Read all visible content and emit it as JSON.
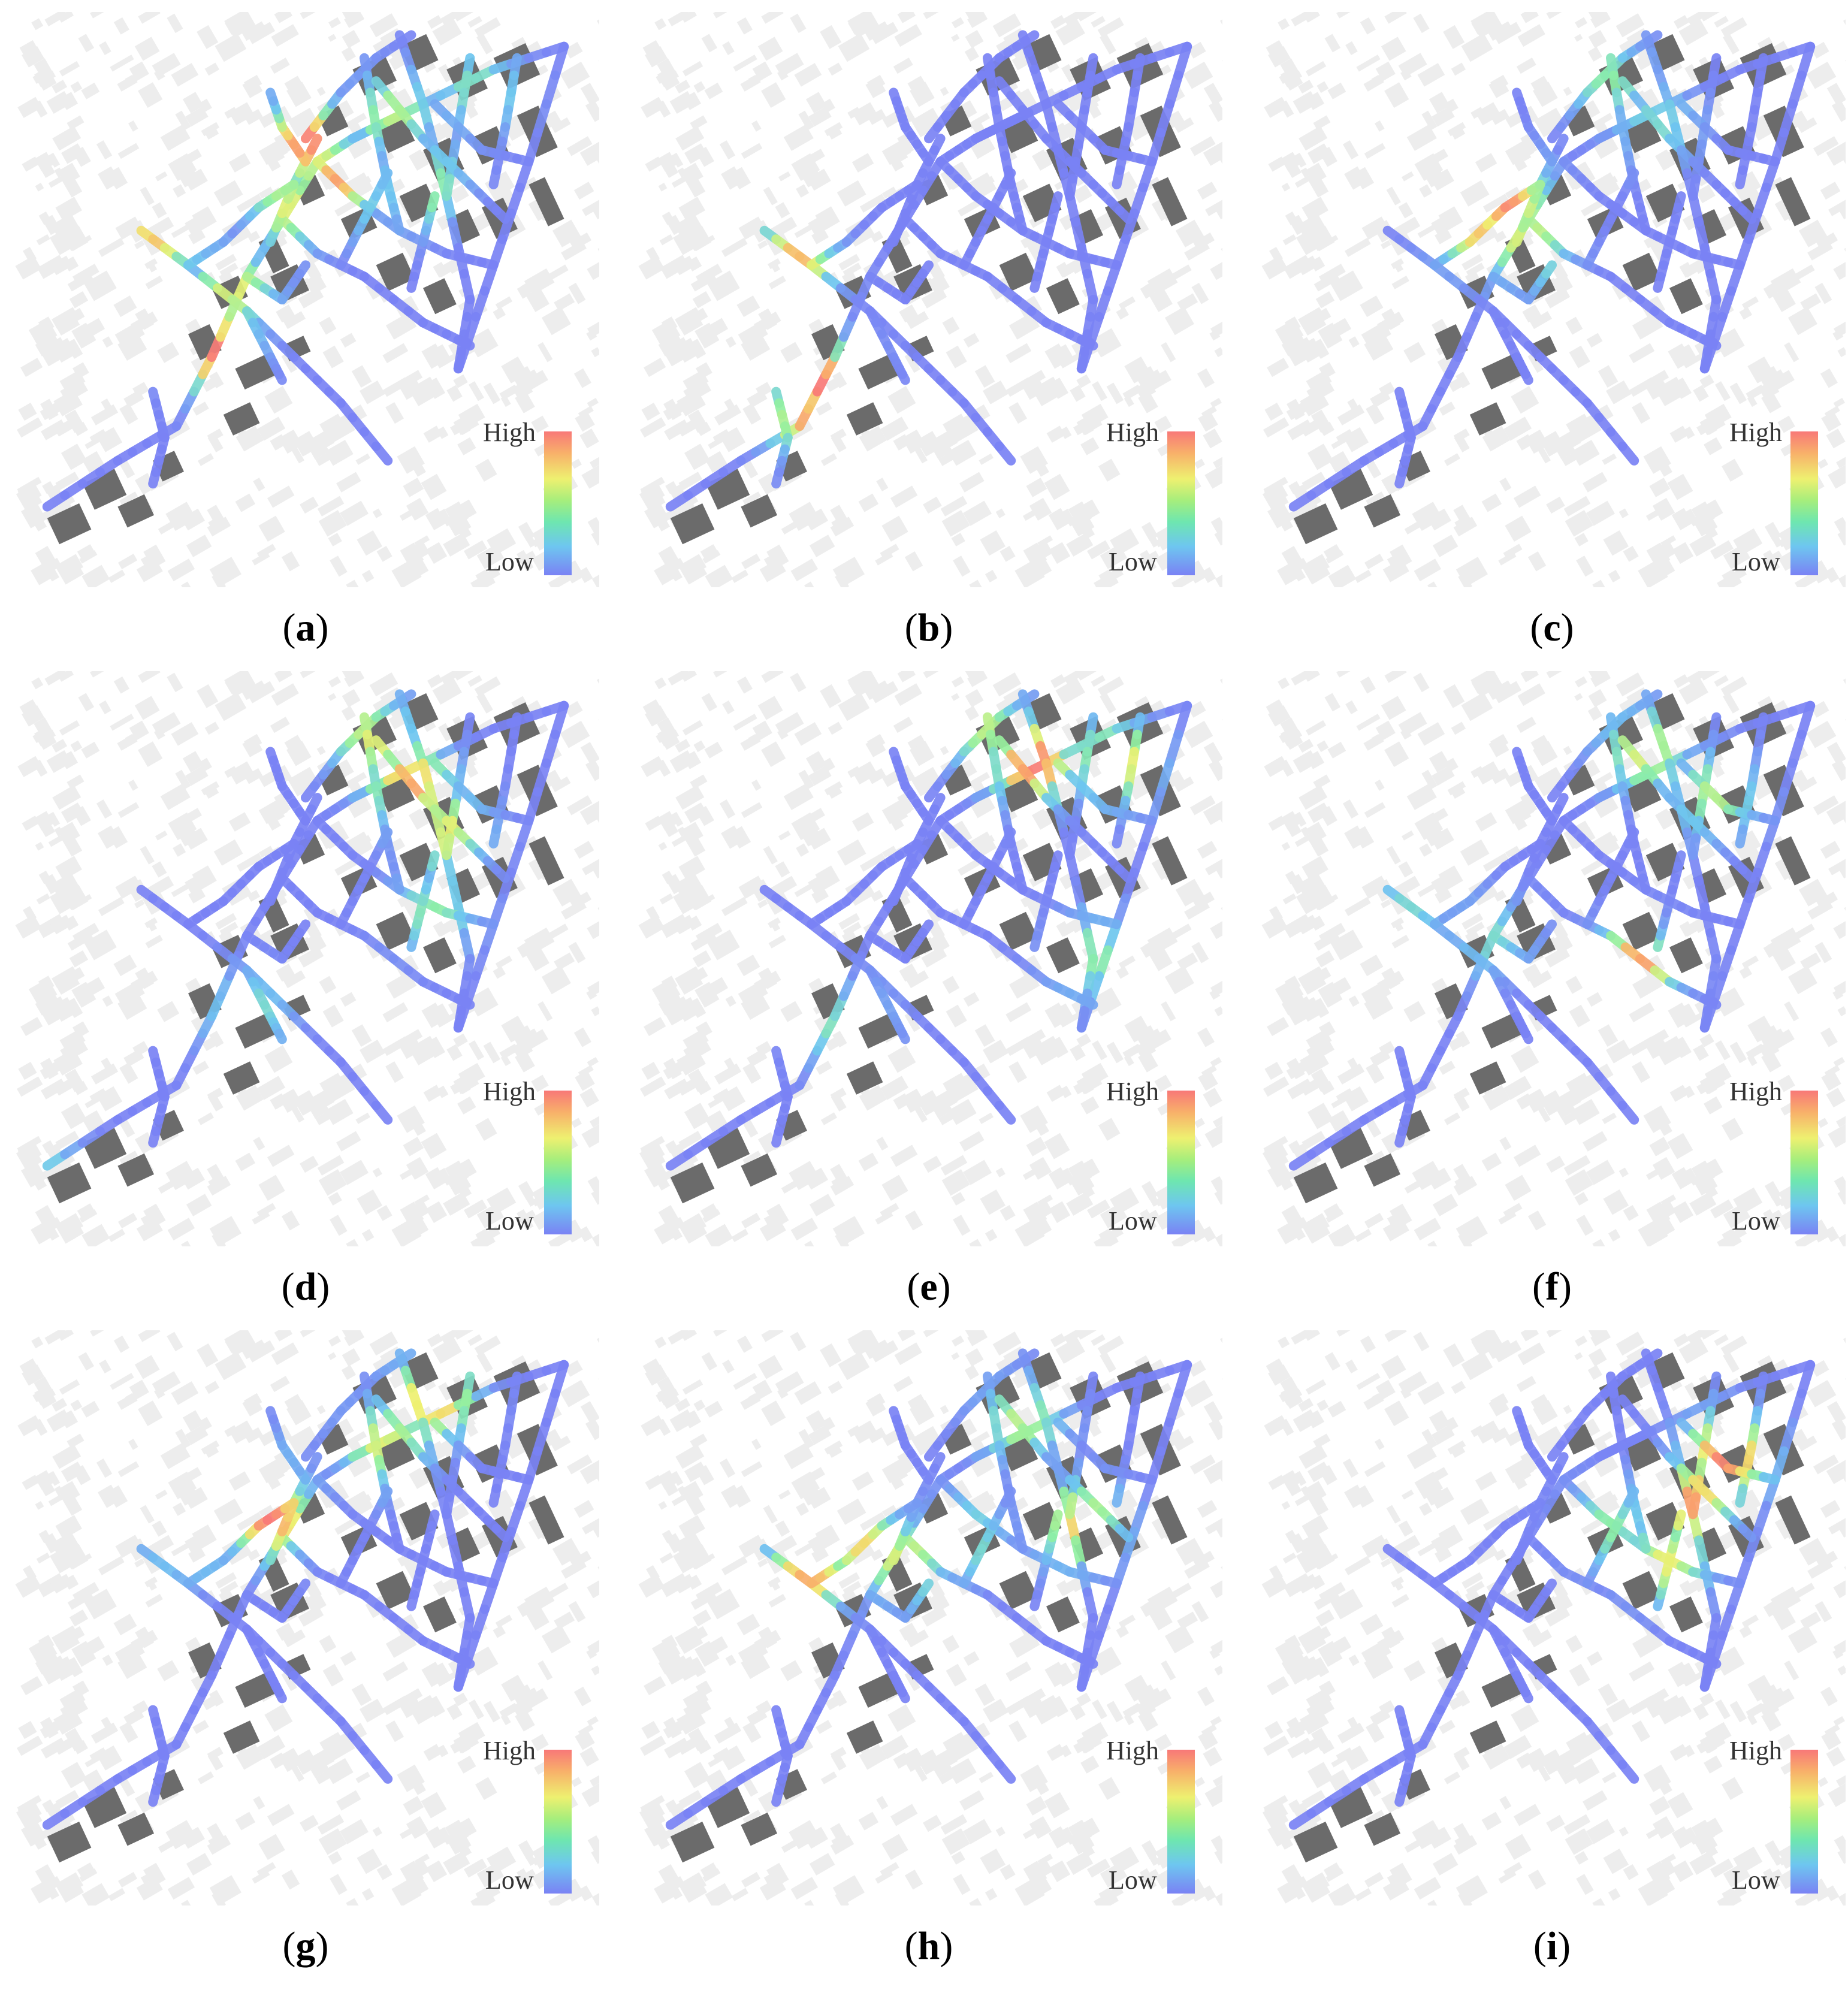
{
  "legend": {
    "high": "High",
    "low": "Low"
  },
  "colors": {
    "low": "#7a82f4",
    "mid_low": "#6ec6f0",
    "mid": "#8ef0a4",
    "mid_high": "#eef070",
    "high": "#f87878",
    "building_dark": "#6b6b6b",
    "building_light": "#ededed"
  },
  "panels": [
    {
      "id": "a",
      "label": "(a)",
      "letter": "a",
      "hot": [
        [
          0.55,
          0.3,
          0.9
        ],
        [
          0.5,
          0.22,
          1.0
        ],
        [
          0.26,
          0.38,
          0.9
        ],
        [
          0.34,
          0.58,
          1.0
        ],
        [
          0.38,
          0.48,
          0.7
        ],
        [
          0.48,
          0.34,
          0.7
        ],
        [
          0.7,
          0.3,
          0.6
        ],
        [
          0.8,
          0.14,
          0.5
        ],
        [
          0.65,
          0.18,
          0.6
        ]
      ]
    },
    {
      "id": "b",
      "label": "(b)",
      "letter": "b",
      "hot": [
        [
          0.27,
          0.44,
          0.9
        ],
        [
          0.32,
          0.64,
          1.0
        ],
        [
          0.3,
          0.7,
          0.9
        ]
      ]
    },
    {
      "id": "c",
      "label": "(c)",
      "letter": "c",
      "hot": [
        [
          0.42,
          0.32,
          1.0
        ],
        [
          0.38,
          0.38,
          0.8
        ],
        [
          0.46,
          0.4,
          0.7
        ],
        [
          0.6,
          0.12,
          0.5
        ],
        [
          0.68,
          0.2,
          0.4
        ]
      ]
    },
    {
      "id": "d",
      "label": "(d)",
      "letter": "d",
      "hot": [
        [
          0.68,
          0.2,
          0.9
        ],
        [
          0.62,
          0.12,
          0.7
        ],
        [
          0.74,
          0.28,
          0.7
        ],
        [
          0.72,
          0.42,
          0.5
        ],
        [
          0.4,
          0.6,
          0.5
        ],
        [
          0.06,
          0.88,
          0.4
        ]
      ]
    },
    {
      "id": "e",
      "label": "(e)",
      "letter": "e",
      "hot": [
        [
          0.68,
          0.16,
          1.0
        ],
        [
          0.82,
          0.16,
          0.8
        ],
        [
          0.6,
          0.1,
          0.6
        ],
        [
          0.78,
          0.5,
          0.5
        ],
        [
          0.36,
          0.62,
          0.5
        ]
      ]
    },
    {
      "id": "f",
      "label": "(f)",
      "letter": "f",
      "hot": [
        [
          0.64,
          0.52,
          1.0
        ],
        [
          0.66,
          0.14,
          0.7
        ],
        [
          0.78,
          0.22,
          0.6
        ],
        [
          0.24,
          0.44,
          0.5
        ],
        [
          0.4,
          0.46,
          0.4
        ]
      ]
    },
    {
      "id": "g",
      "label": "(g)",
      "letter": "g",
      "hot": [
        [
          0.44,
          0.32,
          1.0
        ],
        [
          0.4,
          0.26,
          0.8
        ],
        [
          0.72,
          0.12,
          0.9
        ],
        [
          0.64,
          0.2,
          0.7
        ],
        [
          0.3,
          0.36,
          0.6
        ]
      ]
    },
    {
      "id": "h",
      "label": "(h)",
      "letter": "h",
      "hot": [
        [
          0.3,
          0.42,
          0.9
        ],
        [
          0.38,
          0.36,
          0.8
        ],
        [
          0.24,
          0.48,
          0.7
        ],
        [
          0.46,
          0.4,
          0.7
        ],
        [
          0.66,
          0.16,
          0.6
        ],
        [
          0.76,
          0.34,
          0.8
        ],
        [
          0.56,
          0.36,
          0.5
        ]
      ]
    },
    {
      "id": "i",
      "label": "(i)",
      "letter": "i",
      "hot": [
        [
          0.8,
          0.22,
          1.0
        ],
        [
          0.74,
          0.3,
          0.9
        ],
        [
          0.7,
          0.4,
          0.7
        ],
        [
          0.6,
          0.34,
          0.5
        ]
      ]
    }
  ]
}
